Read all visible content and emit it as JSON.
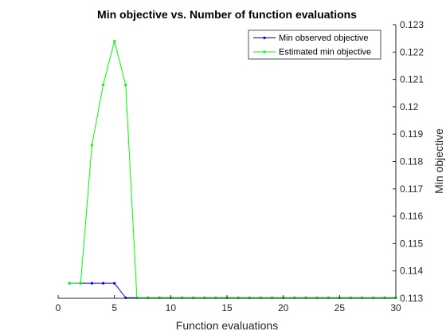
{
  "chart_data": {
    "type": "line",
    "title": "Min objective vs. Number of function evaluations",
    "xlabel": "Function evaluations",
    "ylabel": "Min objective",
    "xlim": [
      0,
      30
    ],
    "ylim": [
      0.113,
      0.123
    ],
    "y_axis_side": "right",
    "grid": false,
    "legend_placement": "top-right",
    "x_ticks": [
      0,
      5,
      10,
      15,
      20,
      25,
      30
    ],
    "x_tick_labels": [
      "0",
      "5",
      "10",
      "15",
      "20",
      "25",
      "30"
    ],
    "y_ticks": [
      0.113,
      0.114,
      0.115,
      0.116,
      0.117,
      0.118,
      0.119,
      0.12,
      0.121,
      0.122,
      0.123
    ],
    "y_tick_labels": [
      "0.113",
      "0.114",
      "0.115",
      "0.116",
      "0.117",
      "0.118",
      "0.119",
      "0.12",
      "0.121",
      "0.122",
      "0.123"
    ],
    "series": [
      {
        "name": "Min observed objective",
        "color": "#0000ff",
        "x": [
          1,
          2,
          3,
          4,
          5,
          6,
          7,
          8,
          9,
          10,
          11,
          12,
          13,
          14,
          15,
          16,
          17,
          18,
          19,
          20,
          21,
          22,
          23,
          24,
          25,
          26,
          27,
          28,
          29,
          30
        ],
        "y": [
          0.11355,
          0.11355,
          0.11355,
          0.11355,
          0.11355,
          0.11302,
          0.11302,
          0.11302,
          0.11302,
          0.11302,
          0.11302,
          0.11302,
          0.11302,
          0.11302,
          0.11302,
          0.11302,
          0.11302,
          0.11302,
          0.11302,
          0.11302,
          0.11302,
          0.11302,
          0.11302,
          0.11302,
          0.11302,
          0.11302,
          0.11302,
          0.11302,
          0.11302,
          0.11302
        ]
      },
      {
        "name": "Estimated min objective",
        "color": "#00ff00",
        "x": [
          1,
          2,
          3,
          4,
          5,
          6,
          7,
          8,
          9,
          10,
          11,
          12,
          13,
          14,
          15,
          16,
          17,
          18,
          19,
          20,
          21,
          22,
          23,
          24,
          25,
          26,
          27,
          28,
          29,
          30
        ],
        "y": [
          0.11355,
          0.11355,
          0.1186,
          0.1208,
          0.1224,
          0.1208,
          0.11302,
          0.11302,
          0.11302,
          0.11302,
          0.11302,
          0.11302,
          0.11302,
          0.11302,
          0.11302,
          0.11302,
          0.11302,
          0.11302,
          0.11302,
          0.11302,
          0.11302,
          0.11302,
          0.11302,
          0.11302,
          0.11302,
          0.11302,
          0.11302,
          0.11302,
          0.11302,
          0.11302
        ]
      }
    ]
  }
}
